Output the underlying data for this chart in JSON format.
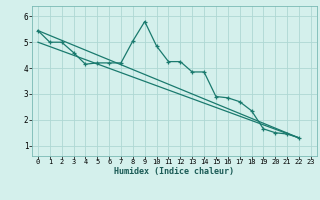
{
  "xlabel": "Humidex (Indice chaleur)",
  "bg_color": "#d4f0ec",
  "line_color": "#1a7a6e",
  "grid_color": "#aed8d4",
  "xlim": [
    -0.5,
    23.5
  ],
  "ylim": [
    0.6,
    6.4
  ],
  "xticks": [
    0,
    1,
    2,
    3,
    4,
    5,
    6,
    7,
    8,
    9,
    10,
    11,
    12,
    13,
    14,
    15,
    16,
    17,
    18,
    19,
    20,
    21,
    22,
    23
  ],
  "yticks": [
    1,
    2,
    3,
    4,
    5,
    6
  ],
  "line1_x": [
    0,
    1,
    2,
    3,
    4,
    5,
    6,
    7,
    8,
    9,
    10,
    11,
    12,
    13,
    14,
    15,
    16,
    17,
    18,
    19,
    20,
    21,
    22
  ],
  "line1_y": [
    5.45,
    5.0,
    5.0,
    4.6,
    4.15,
    4.2,
    4.2,
    4.2,
    5.05,
    5.8,
    4.85,
    4.25,
    4.25,
    3.85,
    3.85,
    2.9,
    2.85,
    2.7,
    2.35,
    1.65,
    1.5,
    1.45,
    1.3
  ],
  "line2_x": [
    0,
    22
  ],
  "line2_y": [
    5.45,
    1.3
  ],
  "line3_x": [
    0,
    22
  ],
  "line3_y": [
    5.0,
    1.3
  ],
  "marker_size": 3.0,
  "linewidth": 0.9,
  "xlabel_fontsize": 6.0,
  "tick_fontsize": 5.0
}
